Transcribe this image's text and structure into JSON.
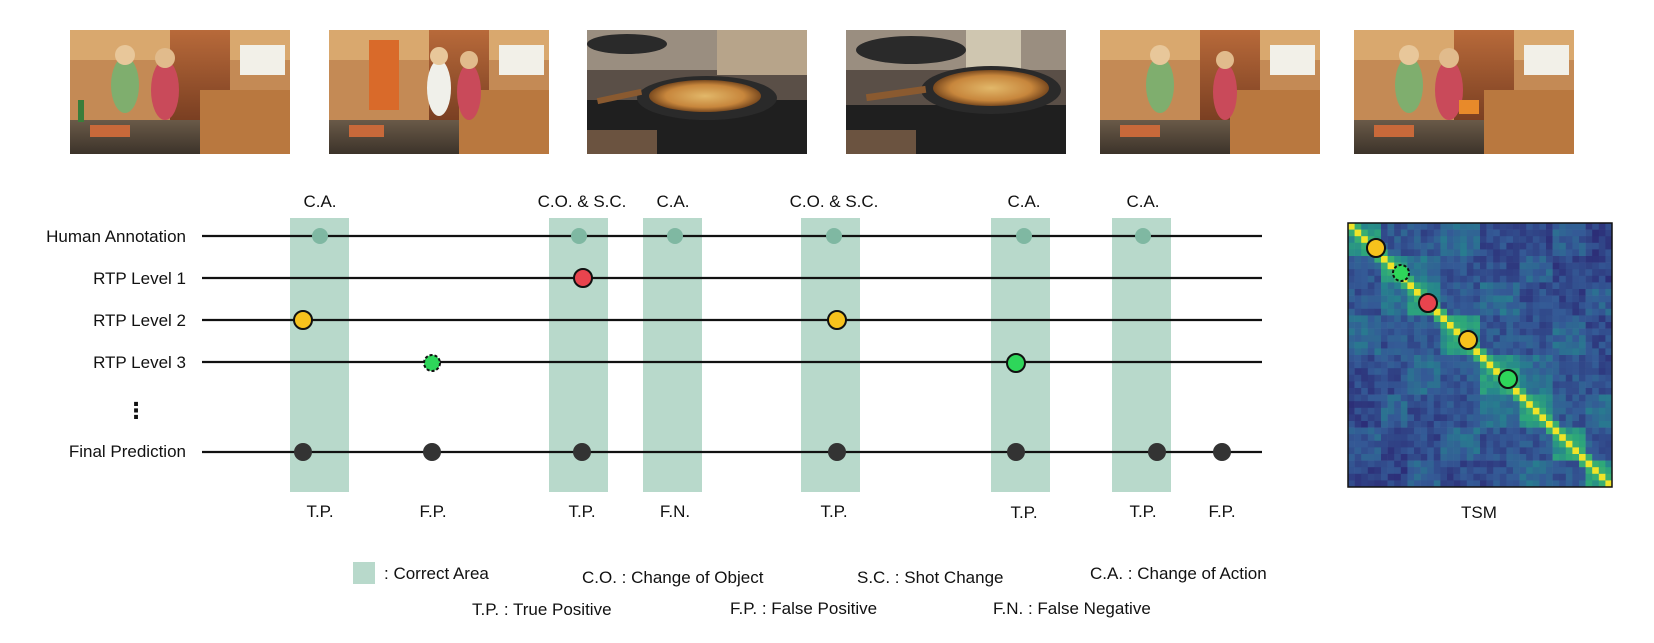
{
  "figure": {
    "frames": [
      {
        "scene": "kitchen-wide-shot"
      },
      {
        "scene": "kitchen-wide-shot"
      },
      {
        "scene": "pan-closeup"
      },
      {
        "scene": "pan-closeup"
      },
      {
        "scene": "kitchen-wide-shot"
      },
      {
        "scene": "kitchen-wide-shot"
      }
    ],
    "rows": {
      "human": "Human Annotation",
      "rtp1": "RTP Level 1",
      "rtp2": "RTP Level 2",
      "rtp3": "RTP Level 3",
      "ellipsis": "⋮",
      "final": "Final Prediction"
    },
    "areas": [
      {
        "top_label": "C.A.",
        "bottom_label": "T.P."
      },
      {
        "top_label": "C.O. & S.C.",
        "bottom_label": "T.P."
      },
      {
        "top_label": "C.A.",
        "bottom_label": "F.N."
      },
      {
        "top_label": "C.O. & S.C.",
        "bottom_label": "T.P."
      },
      {
        "top_label": "C.A.",
        "bottom_label": "T.P."
      },
      {
        "top_label": "C.A.",
        "bottom_label": "T.P."
      }
    ],
    "false_positive_labels": [
      "F.P.",
      "F.P."
    ],
    "tsm_label": "TSM",
    "legend": {
      "correct_area": ": Correct Area",
      "co": "C.O. : Change of Object",
      "sc": "S.C. : Shot Change",
      "ca": "C.A. : Change of Action",
      "tp": "T.P. : True Positive",
      "fp": "F.P. : False Positive",
      "fn": "F.N. : False Negative"
    },
    "colors": {
      "correct_area": "#b8d9cb",
      "human_dot": "#7fb8a2",
      "level1_dot": "#e8444e",
      "level2_dot": "#f7c21c",
      "level3_dot": "#2ed65a",
      "final_dot": "#333333"
    }
  }
}
